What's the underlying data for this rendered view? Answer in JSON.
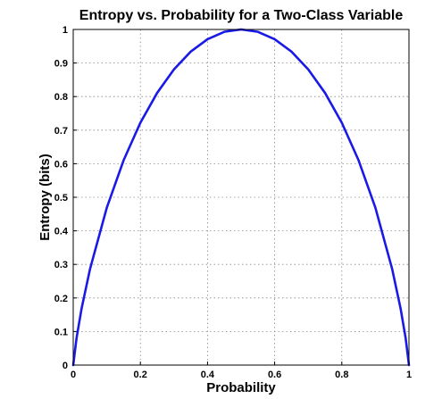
{
  "chart_data": {
    "type": "line",
    "title": "Entropy vs. Probability for a Two-Class Variable",
    "xlabel": "Probability",
    "ylabel": "Entropy (bits)",
    "xlim": [
      0,
      1
    ],
    "ylim": [
      0,
      1
    ],
    "grid": true,
    "x_ticks": [
      "0",
      "0.2",
      "0.4",
      "0.6",
      "0.8",
      "1"
    ],
    "y_ticks": [
      "0",
      "0.1",
      "0.2",
      "0.3",
      "0.4",
      "0.5",
      "0.6",
      "0.7",
      "0.8",
      "0.9",
      "1"
    ],
    "series": [
      {
        "color": "#1a1ae6",
        "x": [
          0,
          0.01,
          0.025,
          0.05,
          0.1,
          0.15,
          0.2,
          0.25,
          0.3,
          0.35,
          0.4,
          0.45,
          0.5,
          0.55,
          0.6,
          0.65,
          0.7,
          0.75,
          0.8,
          0.85,
          0.9,
          0.95,
          0.975,
          0.99,
          1
        ],
        "y": [
          0,
          0.081,
          0.169,
          0.286,
          0.469,
          0.61,
          0.722,
          0.811,
          0.881,
          0.934,
          0.971,
          0.993,
          1.0,
          0.993,
          0.971,
          0.934,
          0.881,
          0.811,
          0.722,
          0.61,
          0.469,
          0.286,
          0.169,
          0.081,
          0
        ]
      }
    ]
  }
}
